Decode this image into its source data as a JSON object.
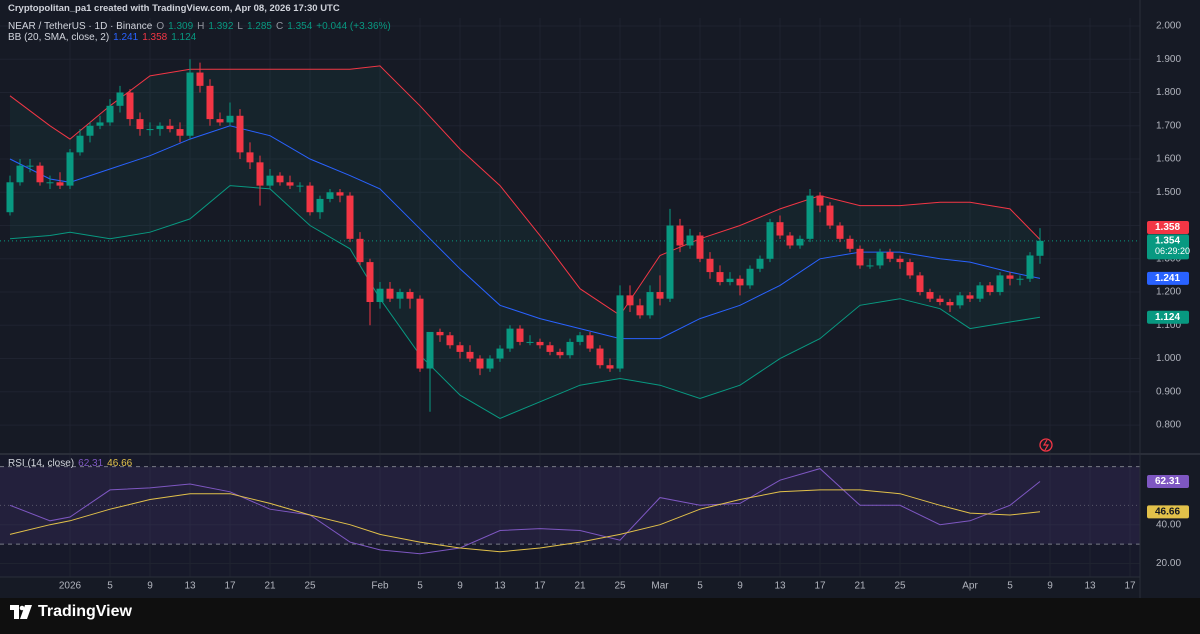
{
  "header": {
    "credit": "Cryptopolitan_pa1 created with TradingView.com, Apr 08, 2026 17:30 UTC"
  },
  "footer": {
    "logo": "TradingView"
  },
  "chart_data": [
    {
      "type": "candlestick",
      "symbol": "NEAR / TetherUS · 1D · Binance",
      "ohlc_legend": [
        {
          "label": "O",
          "value": 1.309
        },
        {
          "label": "H",
          "value": 1.392
        },
        {
          "label": "L",
          "value": 1.285
        },
        {
          "label": "C",
          "value": 1.354
        }
      ],
      "change": "+0.044 (+3.36%)",
      "countdown": "06:29:20",
      "up_color": "#089981",
      "down_color": "#f23645",
      "x": [
        "2025-12-26",
        "2025-12-27",
        "2025-12-28",
        "2025-12-29",
        "2025-12-30",
        "2025-12-31",
        "2026-01-01",
        "2026-01-02",
        "2026-01-03",
        "2026-01-04",
        "2026-01-05",
        "2026-01-06",
        "2026-01-07",
        "2026-01-08",
        "2026-01-09",
        "2026-01-10",
        "2026-01-11",
        "2026-01-12",
        "2026-01-13",
        "2026-01-14",
        "2026-01-15",
        "2026-01-16",
        "2026-01-17",
        "2026-01-18",
        "2026-01-19",
        "2026-01-20",
        "2026-01-21",
        "2026-01-22",
        "2026-01-23",
        "2026-01-24",
        "2026-01-25",
        "2026-01-26",
        "2026-01-27",
        "2026-01-28",
        "2026-01-29",
        "2026-01-30",
        "2026-01-31",
        "2026-02-01",
        "2026-02-02",
        "2026-02-03",
        "2026-02-04",
        "2026-02-05",
        "2026-02-06",
        "2026-02-07",
        "2026-02-08",
        "2026-02-09",
        "2026-02-10",
        "2026-02-11",
        "2026-02-12",
        "2026-02-13",
        "2026-02-14",
        "2026-02-15",
        "2026-02-16",
        "2026-02-17",
        "2026-02-18",
        "2026-02-19",
        "2026-02-20",
        "2026-02-21",
        "2026-02-22",
        "2026-02-23",
        "2026-02-24",
        "2026-02-25",
        "2026-02-26",
        "2026-02-27",
        "2026-02-28",
        "2026-03-01",
        "2026-03-02",
        "2026-03-03",
        "2026-03-04",
        "2026-03-05",
        "2026-03-06",
        "2026-03-07",
        "2026-03-08",
        "2026-03-09",
        "2026-03-10",
        "2026-03-11",
        "2026-03-12",
        "2026-03-13",
        "2026-03-14",
        "2026-03-15",
        "2026-03-16",
        "2026-03-17",
        "2026-03-18",
        "2026-03-19",
        "2026-03-20",
        "2026-03-21",
        "2026-03-22",
        "2026-03-23",
        "2026-03-24",
        "2026-03-25",
        "2026-03-26",
        "2026-03-27",
        "2026-03-28",
        "2026-03-29",
        "2026-03-30",
        "2026-03-31",
        "2026-04-01",
        "2026-04-02",
        "2026-04-03",
        "2026-04-04",
        "2026-04-05",
        "2026-04-06",
        "2026-04-07",
        "2026-04-08"
      ],
      "open": [
        1.44,
        1.53,
        1.58,
        1.58,
        1.53,
        1.53,
        1.52,
        1.62,
        1.67,
        1.7,
        1.71,
        1.76,
        1.8,
        1.72,
        1.69,
        1.69,
        1.7,
        1.69,
        1.67,
        1.86,
        1.82,
        1.72,
        1.71,
        1.73,
        1.62,
        1.59,
        1.52,
        1.55,
        1.53,
        1.52,
        1.52,
        1.44,
        1.48,
        1.5,
        1.49,
        1.36,
        1.29,
        1.17,
        1.21,
        1.18,
        1.2,
        1.18,
        0.97,
        1.08,
        1.07,
        1.04,
        1.02,
        1.0,
        0.97,
        1.0,
        1.03,
        1.09,
        1.05,
        1.05,
        1.04,
        1.02,
        1.01,
        1.05,
        1.07,
        1.03,
        0.98,
        0.97,
        1.19,
        1.16,
        1.13,
        1.2,
        1.18,
        1.4,
        1.34,
        1.37,
        1.3,
        1.26,
        1.23,
        1.24,
        1.22,
        1.27,
        1.3,
        1.41,
        1.37,
        1.34,
        1.36,
        1.49,
        1.46,
        1.4,
        1.36,
        1.33,
        1.28,
        1.28,
        1.32,
        1.3,
        1.29,
        1.25,
        1.2,
        1.18,
        1.17,
        1.16,
        1.19,
        1.18,
        1.22,
        1.2,
        1.25,
        1.24,
        1.24,
        1.309
      ],
      "high": [
        1.55,
        1.6,
        1.6,
        1.59,
        1.55,
        1.56,
        1.63,
        1.69,
        1.71,
        1.73,
        1.78,
        1.82,
        1.81,
        1.74,
        1.71,
        1.71,
        1.72,
        1.71,
        1.9,
        1.89,
        1.84,
        1.74,
        1.77,
        1.75,
        1.65,
        1.61,
        1.57,
        1.56,
        1.55,
        1.53,
        1.53,
        1.49,
        1.51,
        1.51,
        1.5,
        1.38,
        1.3,
        1.23,
        1.23,
        1.21,
        1.21,
        1.19,
        1.08,
        1.09,
        1.08,
        1.05,
        1.04,
        1.01,
        1.01,
        1.04,
        1.1,
        1.1,
        1.07,
        1.06,
        1.05,
        1.03,
        1.06,
        1.08,
        1.08,
        1.04,
        1.0,
        1.22,
        1.22,
        1.18,
        1.22,
        1.25,
        1.45,
        1.42,
        1.39,
        1.38,
        1.32,
        1.28,
        1.26,
        1.25,
        1.28,
        1.31,
        1.42,
        1.43,
        1.38,
        1.37,
        1.51,
        1.5,
        1.47,
        1.41,
        1.37,
        1.34,
        1.3,
        1.33,
        1.33,
        1.31,
        1.3,
        1.26,
        1.21,
        1.19,
        1.18,
        1.2,
        1.2,
        1.23,
        1.23,
        1.26,
        1.26,
        1.25,
        1.32,
        1.392
      ],
      "low": [
        1.43,
        1.52,
        1.56,
        1.52,
        1.51,
        1.51,
        1.51,
        1.61,
        1.65,
        1.69,
        1.7,
        1.74,
        1.7,
        1.67,
        1.67,
        1.67,
        1.68,
        1.65,
        1.66,
        1.8,
        1.7,
        1.7,
        1.7,
        1.6,
        1.57,
        1.46,
        1.51,
        1.52,
        1.51,
        1.5,
        1.43,
        1.42,
        1.47,
        1.47,
        1.35,
        1.28,
        1.1,
        1.15,
        1.17,
        1.15,
        1.15,
        0.96,
        0.84,
        1.05,
        1.03,
        1.0,
        0.99,
        0.95,
        0.96,
        0.99,
        1.02,
        1.04,
        1.04,
        1.03,
        1.01,
        1.0,
        1.0,
        1.04,
        1.02,
        0.97,
        0.96,
        0.96,
        1.14,
        1.12,
        1.12,
        1.16,
        1.17,
        1.32,
        1.33,
        1.29,
        1.24,
        1.22,
        1.22,
        1.19,
        1.21,
        1.26,
        1.29,
        1.36,
        1.33,
        1.33,
        1.35,
        1.44,
        1.39,
        1.35,
        1.32,
        1.27,
        1.27,
        1.27,
        1.29,
        1.27,
        1.24,
        1.19,
        1.17,
        1.16,
        1.14,
        1.15,
        1.17,
        1.17,
        1.19,
        1.19,
        1.22,
        1.22,
        1.23,
        1.285
      ],
      "close": [
        1.53,
        1.58,
        1.58,
        1.53,
        1.53,
        1.52,
        1.62,
        1.67,
        1.7,
        1.71,
        1.76,
        1.8,
        1.72,
        1.69,
        1.69,
        1.7,
        1.69,
        1.67,
        1.86,
        1.82,
        1.72,
        1.71,
        1.73,
        1.62,
        1.59,
        1.52,
        1.55,
        1.53,
        1.52,
        1.52,
        1.44,
        1.48,
        1.5,
        1.49,
        1.36,
        1.29,
        1.17,
        1.21,
        1.18,
        1.2,
        1.18,
        0.97,
        1.08,
        1.07,
        1.04,
        1.02,
        1.0,
        0.97,
        1.0,
        1.03,
        1.09,
        1.05,
        1.05,
        1.04,
        1.02,
        1.01,
        1.05,
        1.07,
        1.03,
        0.98,
        0.97,
        1.19,
        1.16,
        1.13,
        1.2,
        1.18,
        1.4,
        1.34,
        1.37,
        1.3,
        1.26,
        1.23,
        1.24,
        1.22,
        1.27,
        1.3,
        1.41,
        1.37,
        1.34,
        1.36,
        1.49,
        1.46,
        1.4,
        1.36,
        1.33,
        1.28,
        1.28,
        1.32,
        1.3,
        1.29,
        1.25,
        1.2,
        1.18,
        1.17,
        1.16,
        1.19,
        1.18,
        1.22,
        1.2,
        1.25,
        1.24,
        1.24,
        1.31,
        1.354
      ],
      "overlay": {
        "name": "BB (20, SMA, close, 2)",
        "fill": "rgba(34,171,148,0.07)",
        "x": [
          "2025-12-26",
          "2025-12-30",
          "2026-01-01",
          "2026-01-05",
          "2026-01-09",
          "2026-01-13",
          "2026-01-17",
          "2026-01-21",
          "2026-01-25",
          "2026-01-29",
          "2026-02-01",
          "2026-02-05",
          "2026-02-09",
          "2026-02-13",
          "2026-02-17",
          "2026-02-21",
          "2026-02-25",
          "2026-03-01",
          "2026-03-05",
          "2026-03-09",
          "2026-03-13",
          "2026-03-17",
          "2026-03-21",
          "2026-03-25",
          "2026-03-29",
          "2026-04-01",
          "2026-04-05",
          "2026-04-08"
        ],
        "series": [
          {
            "color": "#2962ff",
            "values": [
              1.6,
              1.54,
              1.53,
              1.57,
              1.61,
              1.66,
              1.7,
              1.67,
              1.6,
              1.55,
              1.51,
              1.39,
              1.27,
              1.16,
              1.12,
              1.09,
              1.06,
              1.06,
              1.12,
              1.16,
              1.22,
              1.3,
              1.32,
              1.32,
              1.3,
              1.29,
              1.26,
              1.241
            ]
          },
          {
            "color": "#f23645",
            "values": [
              1.79,
              1.7,
              1.66,
              1.76,
              1.85,
              1.87,
              1.87,
              1.87,
              1.87,
              1.87,
              1.88,
              1.76,
              1.63,
              1.52,
              1.37,
              1.21,
              1.13,
              1.31,
              1.36,
              1.4,
              1.45,
              1.49,
              1.46,
              1.46,
              1.47,
              1.47,
              1.45,
              1.358
            ]
          },
          {
            "color": "#089981",
            "values": [
              1.36,
              1.37,
              1.38,
              1.36,
              1.38,
              1.42,
              1.52,
              1.51,
              1.4,
              1.33,
              1.18,
              1.01,
              0.89,
              0.82,
              0.87,
              0.92,
              0.94,
              0.92,
              0.88,
              0.92,
              1.0,
              1.06,
              1.16,
              1.18,
              1.15,
              1.09,
              1.11,
              1.124
            ]
          }
        ]
      },
      "xlim": [
        "2025-12-25",
        "2026-04-18"
      ],
      "xticks": [
        {
          "value": "2026-01-01",
          "label": "2026"
        },
        {
          "value": "2026-01-05",
          "label": "5"
        },
        {
          "value": "2026-01-09",
          "label": "9"
        },
        {
          "value": "2026-01-13",
          "label": "13"
        },
        {
          "value": "2026-01-17",
          "label": "17"
        },
        {
          "value": "2026-01-21",
          "label": "21"
        },
        {
          "value": "2026-01-25",
          "label": "25"
        },
        {
          "value": "2026-02-01",
          "label": "Feb"
        },
        {
          "value": "2026-02-05",
          "label": "5"
        },
        {
          "value": "2026-02-09",
          "label": "9"
        },
        {
          "value": "2026-02-13",
          "label": "13"
        },
        {
          "value": "2026-02-17",
          "label": "17"
        },
        {
          "value": "2026-02-21",
          "label": "21"
        },
        {
          "value": "2026-02-25",
          "label": "25"
        },
        {
          "value": "2026-03-01",
          "label": "Mar"
        },
        {
          "value": "2026-03-05",
          "label": "5"
        },
        {
          "value": "2026-03-09",
          "label": "9"
        },
        {
          "value": "2026-03-13",
          "label": "13"
        },
        {
          "value": "2026-03-17",
          "label": "17"
        },
        {
          "value": "2026-03-21",
          "label": "21"
        },
        {
          "value": "2026-03-25",
          "label": "25"
        },
        {
          "value": "2026-04-01",
          "label": "Apr"
        },
        {
          "value": "2026-04-05",
          "label": "5"
        },
        {
          "value": "2026-04-09",
          "label": "9"
        },
        {
          "value": "2026-04-13",
          "label": "13"
        },
        {
          "value": "2026-04-17",
          "label": "17"
        }
      ],
      "ylim": [
        0.716,
        2.024
      ],
      "yticks": [
        {
          "value": 2,
          "label": "2.000"
        },
        {
          "value": 1.9,
          "label": "1.900"
        },
        {
          "value": 1.8,
          "label": "1.800"
        },
        {
          "value": 1.7,
          "label": "1.700"
        },
        {
          "value": 1.6,
          "label": "1.600"
        },
        {
          "value": 1.5,
          "label": "1.500"
        },
        {
          "value": 1.4,
          "label": "1.400"
        },
        {
          "value": 1.3,
          "label": "1.300"
        },
        {
          "value": 1.2,
          "label": "1.200"
        },
        {
          "value": 1.1,
          "label": "1.100"
        },
        {
          "value": 1,
          "label": "1.000"
        },
        {
          "value": 0.9,
          "label": "0.900"
        },
        {
          "value": 0.8,
          "label": "0.800"
        }
      ],
      "grid": true
    },
    {
      "type": "line",
      "title": "RSI (14, close)",
      "x": [
        "2025-12-26",
        "2025-12-30",
        "2026-01-01",
        "2026-01-05",
        "2026-01-09",
        "2026-01-13",
        "2026-01-17",
        "2026-01-21",
        "2026-01-25",
        "2026-01-29",
        "2026-02-01",
        "2026-02-05",
        "2026-02-09",
        "2026-02-13",
        "2026-02-17",
        "2026-02-21",
        "2026-02-25",
        "2026-03-01",
        "2026-03-05",
        "2026-03-09",
        "2026-03-13",
        "2026-03-17",
        "2026-03-21",
        "2026-03-25",
        "2026-03-29",
        "2026-04-01",
        "2026-04-05",
        "2026-04-08"
      ],
      "series": [
        {
          "color": "#7e57c2",
          "values": [
            50,
            42,
            44,
            58,
            59,
            61,
            57,
            48,
            45,
            31,
            27,
            25,
            28,
            37,
            38,
            37,
            32,
            54,
            50,
            51,
            63,
            69,
            50,
            50,
            40,
            42,
            50,
            62.31
          ]
        },
        {
          "color": "#e2c14a",
          "values": [
            35,
            40,
            42,
            48,
            53,
            56,
            56,
            51,
            45,
            40,
            35,
            31,
            28,
            26,
            28,
            31,
            35,
            40,
            48,
            53,
            57,
            58,
            58,
            56,
            50,
            46,
            45,
            46.66
          ]
        }
      ],
      "ylim": [
        13,
        76
      ],
      "yticks": [
        {
          "value": 40,
          "label": "40.00"
        },
        {
          "value": 20,
          "label": "20.00"
        }
      ],
      "band": [
        30,
        70
      ],
      "band_color": "rgba(126,87,194,0.12)",
      "midline": 50,
      "grid": true
    }
  ]
}
